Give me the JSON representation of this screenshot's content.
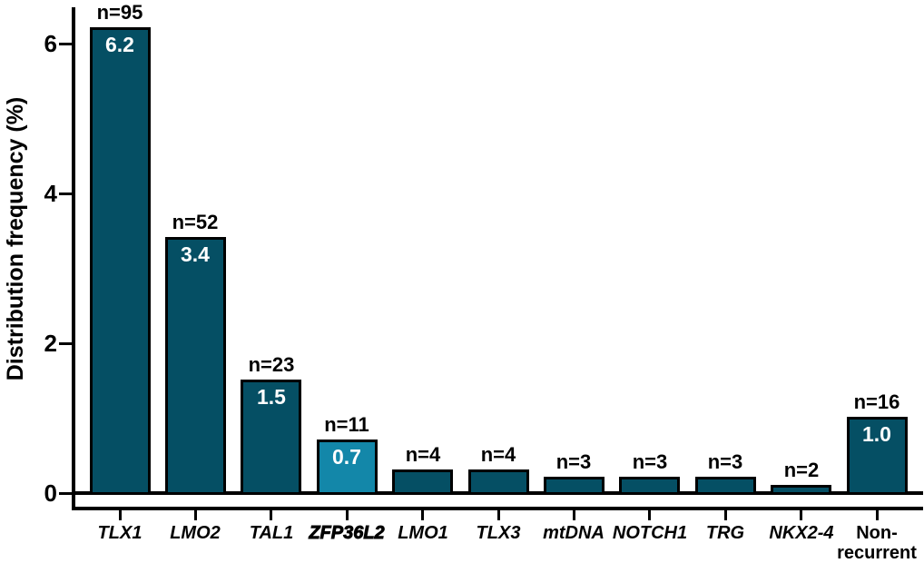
{
  "chart_data": {
    "type": "bar",
    "title": "",
    "xlabel": "",
    "ylabel": "Distribution frequency (%)",
    "ylim": [
      0,
      6.5
    ],
    "yticks": [
      "0",
      "2",
      "4",
      "6"
    ],
    "ytick_values": [
      0,
      2,
      4,
      6
    ],
    "grid": false,
    "legend": null,
    "categories": [
      "TLX1",
      "LMO2",
      "TAL1",
      "ZFP36L2",
      "LMO1",
      "TLX3",
      "mtDNA",
      "NOTCH1",
      "TRG",
      "NKX2-4",
      "Non-\nrecurrent"
    ],
    "values": [
      6.2,
      3.4,
      1.5,
      0.7,
      0.3,
      0.3,
      0.2,
      0.2,
      0.2,
      0.1,
      1.0
    ],
    "n_labels": [
      "n=95",
      "n=52",
      "n=23",
      "n=11",
      "n=4",
      "n=4",
      "n=3",
      "n=3",
      "n=3",
      "n=2",
      "n=16"
    ],
    "bar_value_labels": [
      "6.2",
      "3.4",
      "1.5",
      "0.7",
      "",
      "",
      "",
      "",
      "",
      "",
      "1.0"
    ],
    "category_styles": [
      "italic",
      "italic",
      "italic",
      "italic-heavy",
      "italic",
      "italic",
      "italic",
      "italic",
      "italic",
      "italic",
      "normal"
    ],
    "highlight_index": 3,
    "colors": {
      "bar": "#054f64",
      "highlight_bar": "#1387a9",
      "axis": "#000000",
      "bar_border": "#000000",
      "value_text": "#ffffff",
      "label_text": "#000000"
    }
  }
}
